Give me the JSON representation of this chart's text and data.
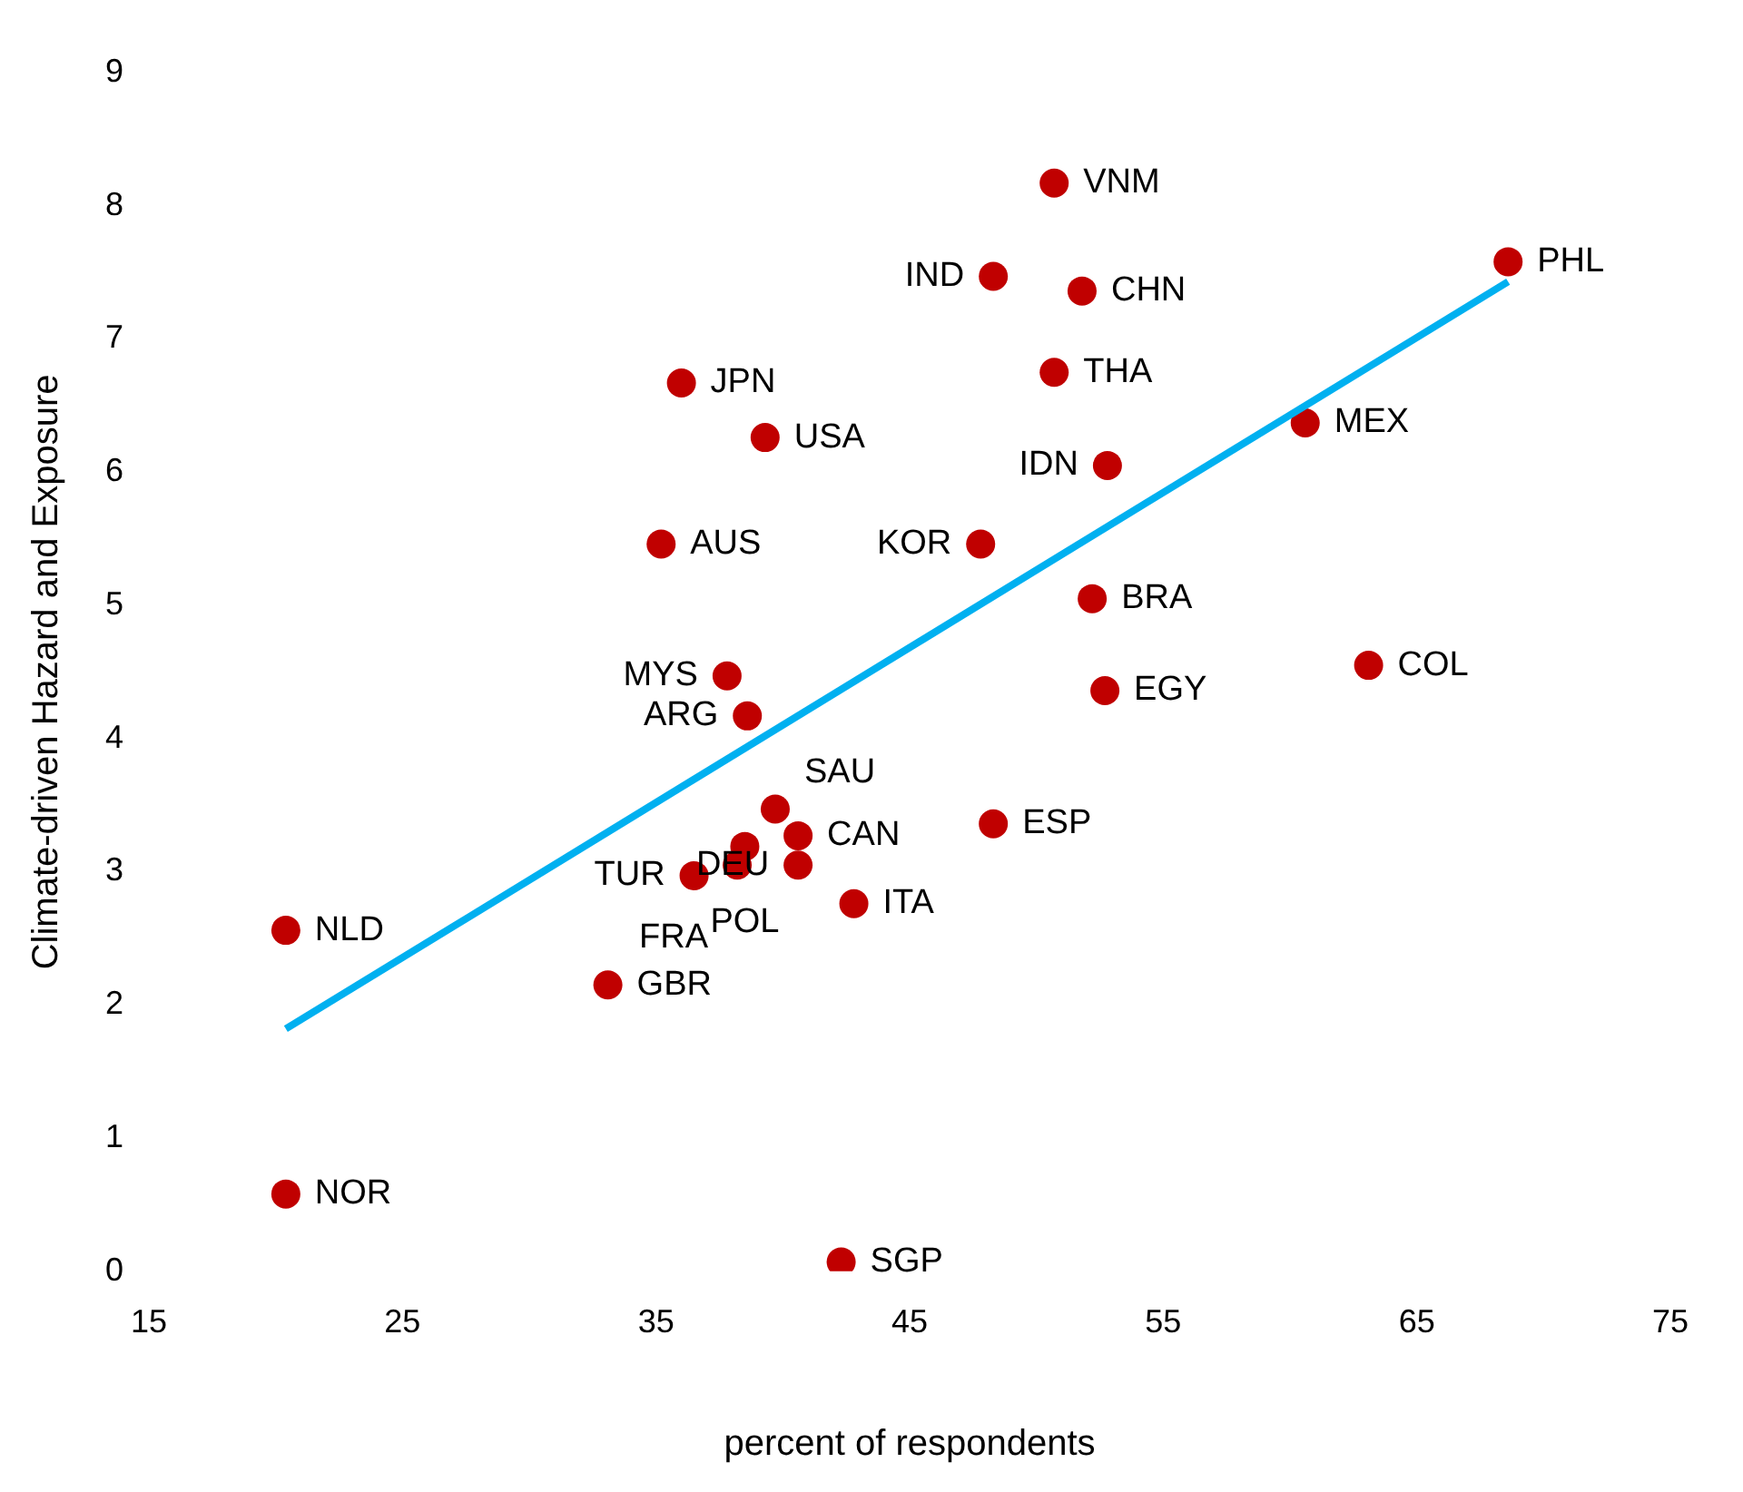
{
  "chart_data": {
    "type": "scatter",
    "xlabel": "percent of respondents",
    "ylabel": "Climate-driven Hazard and Exposure",
    "xlim": [
      15,
      75
    ],
    "xticks": [
      15,
      25,
      35,
      45,
      55,
      65,
      75
    ],
    "ylim": [
      0,
      9
    ],
    "yticks": [
      0,
      1,
      2,
      3,
      4,
      5,
      6,
      7,
      8,
      9
    ],
    "grid": false,
    "legend": false,
    "marker": "circle",
    "series": [
      {
        "color": "#c00000",
        "x": [
          50.7,
          48.3,
          51.8,
          68.6,
          50.7,
          60.6,
          36.0,
          39.3,
          52.8,
          35.2,
          47.8,
          52.2,
          63.1,
          37.8,
          52.7,
          38.6,
          39.7,
          40.6,
          38.5,
          40.6,
          38.2,
          36.5,
          42.8,
          48.3,
          20.4,
          33.1,
          20.4,
          42.3
        ],
        "values": [
          8.17,
          7.47,
          7.36,
          7.58,
          6.75,
          6.37,
          6.67,
          6.26,
          6.05,
          5.46,
          5.46,
          5.05,
          4.55,
          4.47,
          4.36,
          4.17,
          3.47,
          3.27,
          3.19,
          3.05,
          3.05,
          2.97,
          2.76,
          3.36,
          2.56,
          2.15,
          0.58,
          0.07
        ],
        "value_labels": [
          "VNM",
          "IND",
          "CHN",
          "PHL",
          "THA",
          "MEX",
          "JPN",
          "USA",
          "IDN",
          "AUS",
          "KOR",
          "BRA",
          "COL",
          "MYS",
          "EGY",
          "ARG",
          "SAU",
          "CAN",
          "POL",
          "DEU",
          "FRA",
          "TUR",
          "ITA",
          "ESP",
          "NLD",
          "GBR",
          "NOR",
          "SGP"
        ]
      },
      {
        "type": "line",
        "color": "#00b0f0",
        "x": [
          20.4,
          68.6
        ],
        "values": [
          1.82,
          7.43
        ],
        "marker": "none"
      }
    ]
  }
}
